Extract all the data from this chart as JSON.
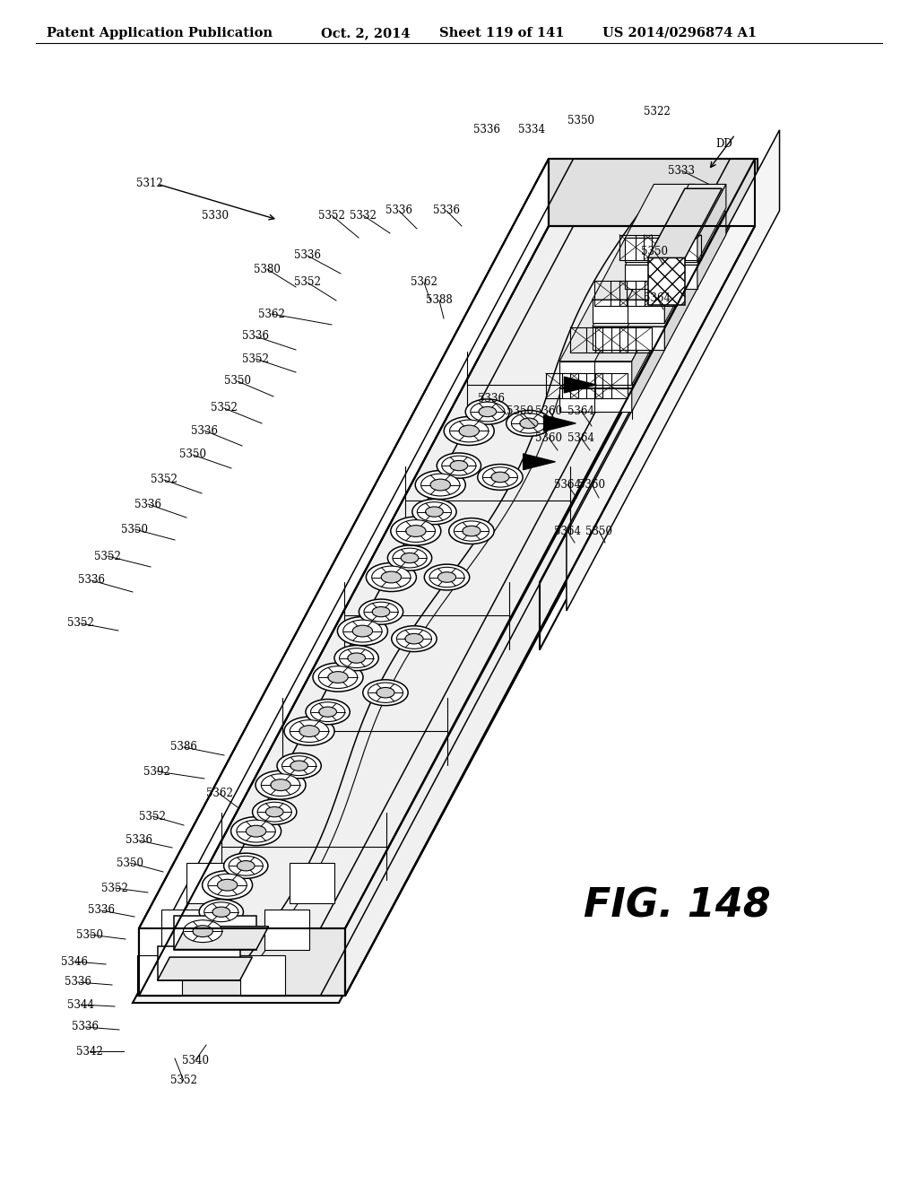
{
  "header_left": "Patent Application Publication",
  "header_date": "Oct. 2, 2014",
  "header_sheet": "Sheet 119 of 141",
  "header_patent": "US 2014/0296874 A1",
  "fig_label": "FIG. 148",
  "bg_color": "#ffffff",
  "line_color": "#000000",
  "header_fontsize": 10.5,
  "fig_fontsize": 32,
  "label_fontsize": 8.5
}
